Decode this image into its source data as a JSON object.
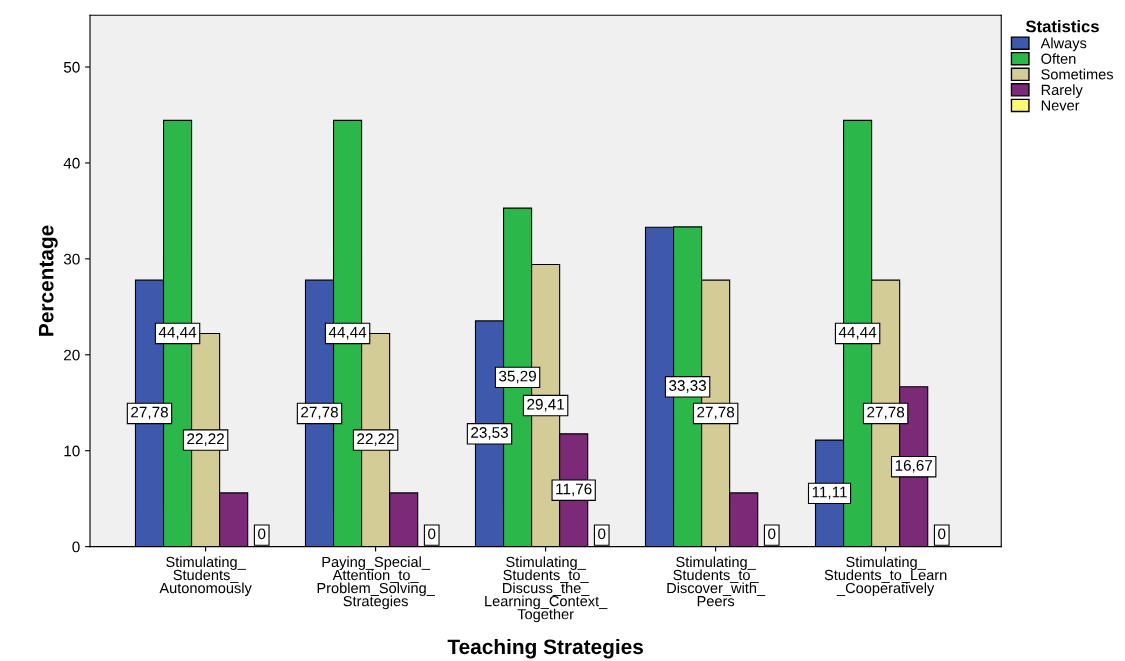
{
  "chart_data": {
    "type": "bar",
    "xlabel": "Teaching Strategies",
    "ylabel": "Percentage",
    "legend_title": "Statistics",
    "categories": [
      "Stimulating_\nStudents_\nAutonomously",
      "Paying_Special_\nAttention_to_\nProblem_Solving_\nStrategies",
      "Stimulating_\nStudents_to_\nDiscuss_the_\nLearning_Context_\nTogether",
      "Stimulating_\nStudents_to_\nDiscover_with_\nPeers",
      "Stimulating_\nStudents_to_Learn\n_Cooperatively"
    ],
    "series": [
      {
        "name": "Always",
        "color": "#3e58ac",
        "values": [
          27.78,
          27.78,
          23.53,
          33.3,
          11.11
        ],
        "value_labels": [
          "27,78",
          "27,78",
          "23,53",
          null,
          "11,11"
        ]
      },
      {
        "name": "Often",
        "color": "#2bb74a",
        "values": [
          44.44,
          44.44,
          35.29,
          33.33,
          44.44
        ],
        "value_labels": [
          "44,44",
          "44,44",
          "35,29",
          "33,33",
          "44,44"
        ]
      },
      {
        "name": "Sometimes",
        "color": "#d3cc97",
        "values": [
          22.22,
          22.22,
          29.41,
          27.78,
          27.78
        ],
        "value_labels": [
          "22,22",
          "22,22",
          "29,41",
          "27,78",
          "27,78"
        ]
      },
      {
        "name": "Rarely",
        "color": "#7b2a78",
        "values": [
          5.6,
          5.6,
          11.76,
          5.6,
          16.67
        ],
        "value_labels": [
          null,
          null,
          "11,76",
          null,
          "16,67"
        ]
      },
      {
        "name": "Never",
        "color": "#fbf873",
        "values": [
          0,
          0,
          0,
          0,
          0
        ],
        "value_labels": [
          "0",
          "0",
          "0",
          "0",
          "0"
        ]
      }
    ],
    "ylim": [
      0,
      55.4
    ],
    "yticks": [
      0,
      10,
      20,
      30,
      40,
      50
    ],
    "grid": false,
    "legend": "top right"
  }
}
